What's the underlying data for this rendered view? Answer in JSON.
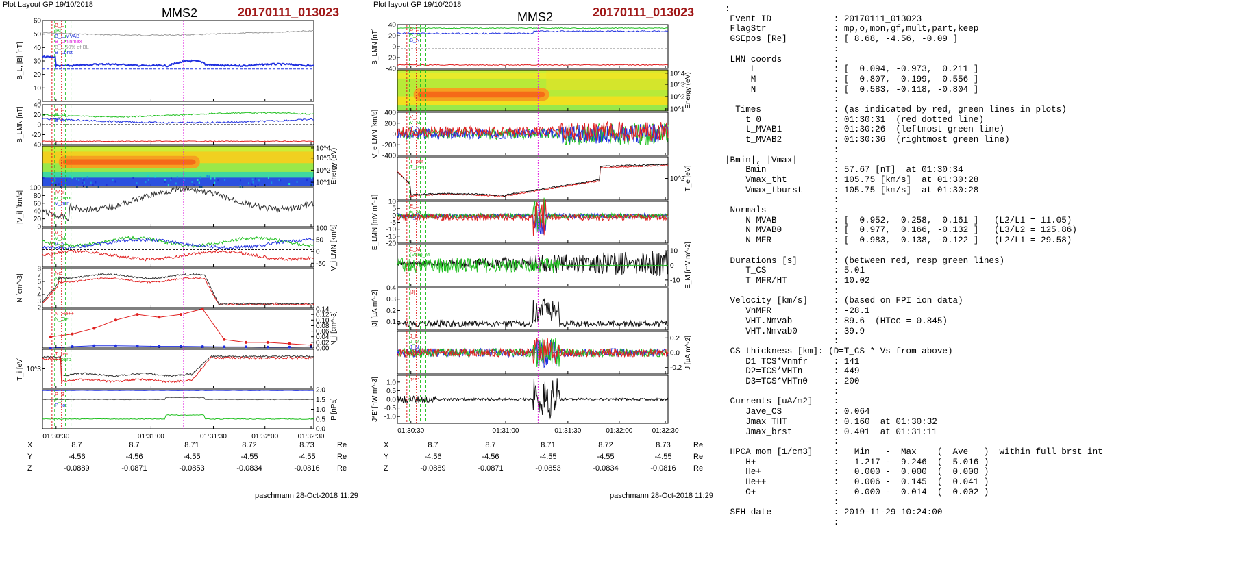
{
  "left_panel": {
    "header": "Plot Layout GP 19/10/2018",
    "spacecraft": "MMS2",
    "event": "20170111_013023",
    "footer": "paschmann 28-Oct-2018 11:29",
    "x_ticks": [
      "01:30:30",
      "01:31:00",
      "01:31:30",
      "01:32:00",
      "01:32:30"
    ],
    "ephemeris": {
      "rows": [
        {
          "label": "X",
          "values": [
            "8.7",
            "8.7",
            "8.71",
            "8.72",
            "8.73"
          ],
          "unit": "Re"
        },
        {
          "label": "Y",
          "values": [
            "-4.56",
            "-4.56",
            "-4.55",
            "-4.55",
            "-4.55"
          ],
          "unit": "Re"
        },
        {
          "label": "Z",
          "values": [
            "-0.0889",
            "-0.0871",
            "-0.0853",
            "-0.0834",
            "-0.0816"
          ],
          "unit": "Re"
        }
      ]
    }
  },
  "right_panel": {
    "header": "Plot layout GP 19/10/2018",
    "spacecraft": "MMS2",
    "event": "20170111_013023",
    "footer": "paschmann 28-Oct-2018 11:29",
    "x_ticks": [
      "01:30:30",
      "01:31:00",
      "01:31:30",
      "01:32:00",
      "01:32:30"
    ],
    "ephemeris": {
      "rows": [
        {
          "label": "X",
          "values": [
            "8.7",
            "8.7",
            "8.71",
            "8.72",
            "8.73"
          ],
          "unit": "Re"
        },
        {
          "label": "Y",
          "values": [
            "-4.56",
            "-4.56",
            "-4.55",
            "-4.55",
            "-4.55"
          ],
          "unit": "Re"
        },
        {
          "label": "Z",
          "values": [
            "-0.0889",
            "-0.0871",
            "-0.0853",
            "-0.0834",
            "-0.0816"
          ],
          "unit": "Re"
        }
      ]
    }
  },
  "colors": {
    "event": "#a01818",
    "red": "#e02020",
    "green": "#20c020",
    "blue": "#2030e0",
    "magenta": "#e020e0"
  },
  "info_lines": [
    ":",
    " Event ID            : 20170111_013023",
    " FlagStr             : mp,o,mon,gf,mult,part,keep",
    " GSEpos [Re]         : [ 8.68, -4.56, -0.09 ]",
    "                     :",
    " LMN coords          :",
    "     L               : [  0.094, -0.973,  0.211 ]",
    "     M               : [  0.807,  0.199,  0.556 ]",
    "     N               : [  0.583, -0.118, -0.804 ]",
    "                     :",
    "  Times              : (as indicated by red, green lines in plots)",
    "    t_0              : 01:30:31  (red dotted line)",
    "    t_MVAB1          : 01:30:26  (leftmost green line)",
    "    t_MVAB2          : 01:30:36  (rightmost green line)",
    "                     :",
    "|Bmin|, |Vmax|       :",
    "    Bmin             : 57.67 [nT]  at 01:30:34",
    "    Vmax_tht         : 105.75 [km/s]  at 01:30:28",
    "    Vmax_tburst      : 105.75 [km/s]  at 01:30:28",
    "                     :",
    " Normals             :",
    "    N MVAB           : [  0.952,  0.258,  0.161 ]   (L2/L1 = 11.05)",
    "    N MVAB0          : [  0.977,  0.166, -0.132 ]   (L3/L2 = 125.86)",
    "    N MFR            : [  0.983,  0.138, -0.122 ]   (L2/L1 = 29.58)",
    "                     :",
    " Durations [s]       : (between red, resp green lines)",
    "    T_CS             : 5.01",
    "    T_MFR/HT         : 10.02",
    "                     :",
    " Velocity [km/s]     : (based on FPI ion data)",
    "    VnMFR            : -28.1",
    "    VHT.Nmvab        : 89.6  (HTcc = 0.845)",
    "    VHT.Nmvab0       : 39.9",
    "                     :",
    " CS thickness [km]: (D=T_CS * Vs from above)",
    "    D1=TCS*Vnmfr     : 141",
    "    D2=TCS*VHTn      : 449",
    "    D3=TCS*VHTn0     : 200",
    "                     :",
    " Currents [uA/m2]    :",
    "    Jave_CS          : 0.064",
    "    Jmax_THT         : 0.160  at 01:30:32",
    "    Jmax_brst        : 0.401  at 01:31:11",
    "                     :",
    " HPCA mom [1/cm3]    :   Min   -  Max    (  Ave   )  within full brst int",
    "    H+               :   1.217 -  9.246  (  5.016 )",
    "    He+              :   0.000 -  0.000  (  0.000 )",
    "    He++             :   0.006 -  0.145  (  0.041 )",
    "    O+               :   0.000 -  0.014  (  0.002 )",
    "                     :",
    " SEH date            : 2019-11-29 10:24:00",
    "                     :"
  ],
  "chart_data": [
    {
      "type": "line",
      "figure": "left",
      "panels": [
        {
          "ylabel": "B_L, |B| [nT]",
          "yticks": [
            "0",
            "10",
            "20",
            "30",
            "40",
            "50",
            "60"
          ],
          "legend": [
            "B_L",
            "|B|",
            "B_L,MVAB",
            "B_Lminmax",
            "B_L 50% of BL",
            "B_Lbrst"
          ]
        },
        {
          "ylabel": "B_LMN [nT]",
          "yticks": [
            "-40",
            "-20",
            "0",
            "20",
            "40"
          ],
          "legend": [
            "B_L",
            "B_M",
            "B_N"
          ]
        },
        {
          "ylabel": "Energy (eV)",
          "type": "heatmap",
          "yticks": [
            "10^1",
            "10^2",
            "10^3",
            "10^4"
          ]
        },
        {
          "ylabel": "|V_i| [km/s]",
          "yticks": [
            "0",
            "20",
            "40",
            "60",
            "80",
            "100"
          ],
          "legend": [
            "|V_i|",
            "V_max",
            "V_min"
          ]
        },
        {
          "ylabel": "V_i LMN [km/s]",
          "yticks": [
            "-50",
            "0",
            "50",
            "100"
          ],
          "legend": [
            "V_L",
            "V_M",
            "V_N"
          ]
        },
        {
          "ylabel": "N [cm^-3]",
          "yticks": [
            "2",
            "3",
            "4",
            "5",
            "6",
            "7",
            "8"
          ],
          "legend": [
            "Ne",
            "Ni"
          ]
        },
        {
          "ylabel": "N_i [cm^-3]",
          "yticks": [
            "0.00",
            "0.02",
            "0.04",
            "0.06",
            "0.08",
            "0.10",
            "0.12",
            "0.14"
          ],
          "legend": [
            "N_He++",
            "N_O+"
          ],
          "series": [
            {
              "name": "N_He++",
              "x": [
                "01:30:24",
                "01:30:34",
                "01:30:44",
                "01:30:54",
                "01:31:04",
                "01:31:14",
                "01:31:24",
                "01:31:34",
                "01:31:44",
                "01:31:54",
                "01:32:04",
                "01:32:14",
                "01:32:24"
              ],
              "values": [
                0.04,
                0.05,
                0.07,
                0.1,
                0.12,
                0.11,
                0.12,
                0.14,
                0.03,
                0.02,
                0.02,
                0.015,
                0.01
              ]
            },
            {
              "name": "N_O+",
              "x": [
                "01:30:24",
                "01:30:34",
                "01:30:44",
                "01:30:54",
                "01:31:04",
                "01:31:14",
                "01:31:24",
                "01:31:34",
                "01:31:44",
                "01:31:54",
                "01:32:04",
                "01:32:14",
                "01:32:24"
              ],
              "values": [
                0.0,
                0.005,
                0.008,
                0.008,
                0.007,
                0.006,
                0.006,
                0.005,
                0.004,
                0.004,
                0.003,
                0.003,
                0.004
              ]
            }
          ]
        },
        {
          "ylabel": "T_i [eV]",
          "yticks": [
            "10^3"
          ],
          "legend": [
            "T_par",
            "T_perp"
          ]
        },
        {
          "ylabel": "P [nPa]",
          "yticks": [
            "0.0",
            "0.5",
            "1.0",
            "1.5",
            "2.0"
          ],
          "legend": [
            "P_B",
            "P_i",
            "P_tot"
          ]
        }
      ],
      "x": [
        "01:30:30",
        "01:31:00",
        "01:31:30",
        "01:32:00",
        "01:32:30"
      ]
    },
    {
      "type": "line",
      "figure": "right",
      "panels": [
        {
          "ylabel": "B_LMN [nT]",
          "yticks": [
            "-40",
            "-20",
            "0",
            "20",
            "40"
          ],
          "legend": [
            "B_L",
            "B_M",
            "B_N"
          ]
        },
        {
          "ylabel": "Energy (eV)",
          "type": "heatmap",
          "yticks": [
            "10^1",
            "10^2",
            "10^3",
            "10^4"
          ]
        },
        {
          "ylabel": "V_e LMN [km/s]",
          "yticks": [
            "-400",
            "-200",
            "0",
            "200",
            "400"
          ],
          "legend": [
            "V_L",
            "V_M",
            "V_N"
          ]
        },
        {
          "ylabel": "T_e [eV]",
          "yticks": [
            "10^2"
          ],
          "legend": [
            "T_par",
            "T_perp"
          ]
        },
        {
          "ylabel": "E_LMN [mV m^-1]",
          "yticks": [
            "-20",
            "-15",
            "-10",
            "-5",
            "0",
            "5",
            "10"
          ],
          "legend": [
            "E_L",
            "E_M",
            "E_N"
          ]
        },
        {
          "ylabel": "E_M [mV m^-2]",
          "yticks": [
            "-10",
            "0",
            "10"
          ],
          "legend": [
            "E_M",
            "(VxB)_M"
          ]
        },
        {
          "ylabel": "|J| [µA m^-2]",
          "yticks": [
            "0.1",
            "0.2",
            "0.3",
            "0.4"
          ],
          "legend": [
            "|J|"
          ]
        },
        {
          "ylabel": "J [µA m^-2]",
          "yticks": [
            "-0.2",
            "0.0",
            "0.2"
          ],
          "legend": [
            "J_L",
            "J_M",
            "J_N",
            "J_max"
          ]
        },
        {
          "ylabel": "J*E' [nW m^-3]",
          "yticks": [
            "-1.0",
            "-0.5",
            "0.0",
            "0.5",
            "1.0"
          ],
          "legend": [
            "J*E'"
          ]
        }
      ],
      "x": [
        "01:30:30",
        "01:31:00",
        "01:31:30",
        "01:32:00",
        "01:32:30"
      ]
    }
  ]
}
